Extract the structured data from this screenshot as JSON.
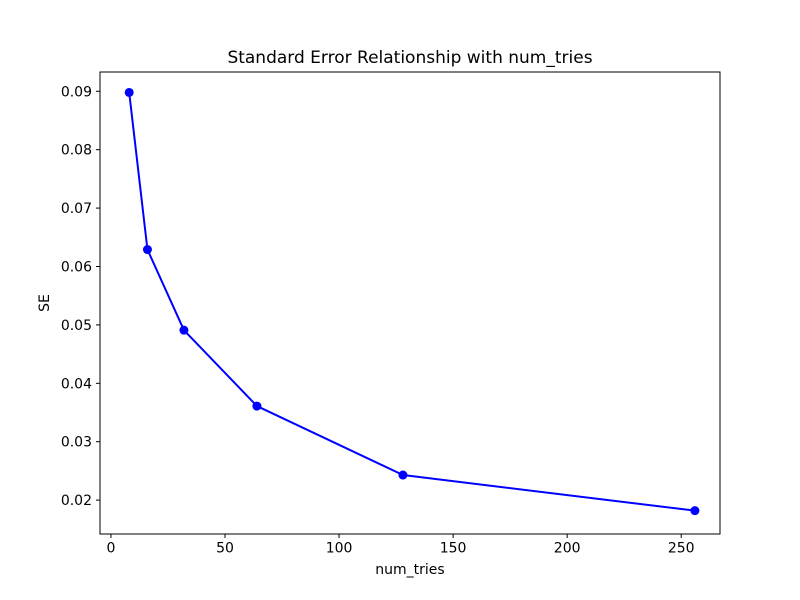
{
  "figure": {
    "background": "#ffffff"
  },
  "chart_data": {
    "type": "line",
    "title": "Standard Error Relationship with num_tries",
    "xlabel": "num_tries",
    "ylabel": "SE",
    "grid": false,
    "legend": "none",
    "axis_color": "#000000",
    "text_color": "#000000",
    "xlim": [
      -4.8,
      267.0
    ],
    "ylim": [
      0.0142,
      0.0933
    ],
    "xticks": {
      "values": [
        0,
        50,
        100,
        150,
        200,
        250
      ],
      "labels": [
        "0",
        "50",
        "100",
        "150",
        "200",
        "250"
      ]
    },
    "yticks": {
      "values": [
        0.02,
        0.03,
        0.04,
        0.05,
        0.06,
        0.07,
        0.08,
        0.09
      ],
      "labels": [
        "0.02",
        "0.03",
        "0.04",
        "0.05",
        "0.06",
        "0.07",
        "0.08",
        "0.09"
      ]
    },
    "series": [
      {
        "name": "SE",
        "color": "#0000ff",
        "marker": "circle",
        "marker_radius": 4.5,
        "line_width": 2,
        "x": [
          8,
          16,
          32,
          64,
          128,
          256
        ],
        "y": [
          0.0898,
          0.0629,
          0.0491,
          0.0361,
          0.0243,
          0.0182
        ]
      }
    ]
  }
}
